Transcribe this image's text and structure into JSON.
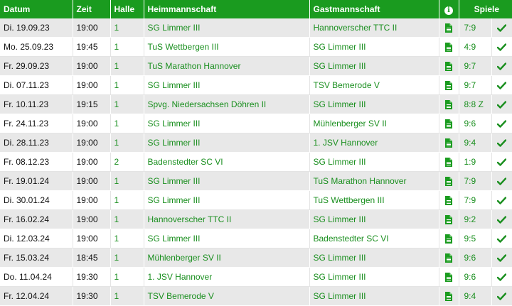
{
  "header": {
    "date": "Datum",
    "time": "Zeit",
    "hall": "Halle",
    "home": "Heimmannschaft",
    "guest": "Gastmannschaft",
    "info_icon": "info-icon",
    "games": "Spiele"
  },
  "rows": [
    {
      "date": "Di. 19.09.23",
      "time": "19:00",
      "hall": "1",
      "home": "SG Limmer III",
      "guest": "Hannoverscher TTC II",
      "score": "7:9"
    },
    {
      "date": "Mo. 25.09.23",
      "time": "19:45",
      "hall": "1",
      "home": "TuS Wettbergen III",
      "guest": "SG Limmer III",
      "score": "4:9"
    },
    {
      "date": "Fr. 29.09.23",
      "time": "19:00",
      "hall": "1",
      "home": "TuS Marathon Hannover",
      "guest": "SG Limmer III",
      "score": "9:7"
    },
    {
      "date": "Di. 07.11.23",
      "time": "19:00",
      "hall": "1",
      "home": "SG Limmer III",
      "guest": "TSV Bemerode V",
      "score": "9:7"
    },
    {
      "date": "Fr. 10.11.23",
      "time": "19:15",
      "hall": "1",
      "home": "Spvg. Niedersachsen Döhren II",
      "guest": "SG Limmer III",
      "score": "8:8 Z"
    },
    {
      "date": "Fr. 24.11.23",
      "time": "19:00",
      "hall": "1",
      "home": "SG Limmer III",
      "guest": "Mühlenberger SV II",
      "score": "9:6"
    },
    {
      "date": "Di. 28.11.23",
      "time": "19:00",
      "hall": "1",
      "home": "SG Limmer III",
      "guest": "1. JSV Hannover",
      "score": "9:4"
    },
    {
      "date": "Fr. 08.12.23",
      "time": "19:00",
      "hall": "2",
      "home": "Badenstedter SC VI",
      "guest": "SG Limmer III",
      "score": "1:9"
    },
    {
      "date": "Fr. 19.01.24",
      "time": "19:00",
      "hall": "1",
      "home": "SG Limmer III",
      "guest": "TuS Marathon Hannover",
      "score": "7:9"
    },
    {
      "date": "Di. 30.01.24",
      "time": "19:00",
      "hall": "1",
      "home": "SG Limmer III",
      "guest": "TuS Wettbergen III",
      "score": "7:9"
    },
    {
      "date": "Fr. 16.02.24",
      "time": "19:00",
      "hall": "1",
      "home": "Hannoverscher TTC II",
      "guest": "SG Limmer III",
      "score": "9:2"
    },
    {
      "date": "Di. 12.03.24",
      "time": "19:00",
      "hall": "1",
      "home": "SG Limmer III",
      "guest": "Badenstedter SC VI",
      "score": "9:5"
    },
    {
      "date": "Fr. 15.03.24",
      "time": "18:45",
      "hall": "1",
      "home": "Mühlenberger SV II",
      "guest": "SG Limmer III",
      "score": "9:6"
    },
    {
      "date": "Do. 11.04.24",
      "time": "19:30",
      "hall": "1",
      "home": "1. JSV Hannover",
      "guest": "SG Limmer III",
      "score": "9:6"
    },
    {
      "date": "Fr. 12.04.24",
      "time": "19:30",
      "hall": "1",
      "home": "TSV Bemerode V",
      "guest": "SG Limmer III",
      "score": "9:4"
    }
  ],
  "icons": {
    "report": "document-icon",
    "confirmed": "check-icon"
  },
  "colors": {
    "header_bg": "#1a9b1f",
    "accent_text": "#1a8f1f",
    "row_alt": "#e8e8e8"
  }
}
